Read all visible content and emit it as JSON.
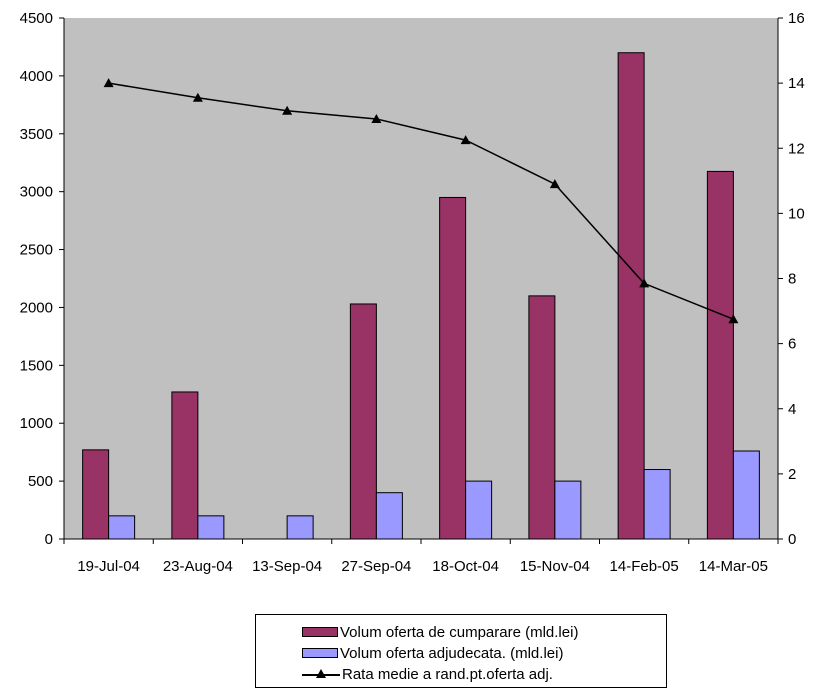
{
  "chart_data": {
    "type": "bar",
    "categories": [
      "19-Jul-04",
      "23-Aug-04",
      "13-Sep-04",
      "27-Sep-04",
      "18-Oct-04",
      "15-Nov-04",
      "14-Feb-05",
      "14-Mar-05"
    ],
    "series": [
      {
        "name": "Volum oferta de cumparare (mld.lei)",
        "type": "bar",
        "axis": "left",
        "color": "#993366",
        "values": [
          770,
          1270,
          0,
          2030,
          2950,
          2100,
          4200,
          3175
        ]
      },
      {
        "name": "Volum  oferta adjudecata. (mld.lei)",
        "type": "bar",
        "axis": "left",
        "color": "#9999ff",
        "values": [
          200,
          200,
          200,
          400,
          500,
          500,
          600,
          760
        ]
      },
      {
        "name": "Rata medie a rand.pt.oferta adj.",
        "type": "line",
        "axis": "right",
        "color": "#000000",
        "marker": "triangle",
        "values": [
          14.0,
          13.55,
          13.15,
          12.9,
          12.25,
          10.9,
          7.85,
          6.75
        ]
      }
    ],
    "y_left": {
      "ticks": [
        0,
        500,
        1000,
        1500,
        2000,
        2500,
        3000,
        3500,
        4000,
        4500
      ],
      "range": [
        0,
        4500
      ]
    },
    "y_right": {
      "ticks": [
        0,
        2,
        4,
        6,
        8,
        10,
        12,
        14,
        16
      ],
      "range": [
        0,
        16
      ]
    },
    "plot_background": "#c0c0c0",
    "grid": false,
    "legend_position": "bottom-center",
    "title": "",
    "xlabel": "",
    "ylabel": ""
  }
}
